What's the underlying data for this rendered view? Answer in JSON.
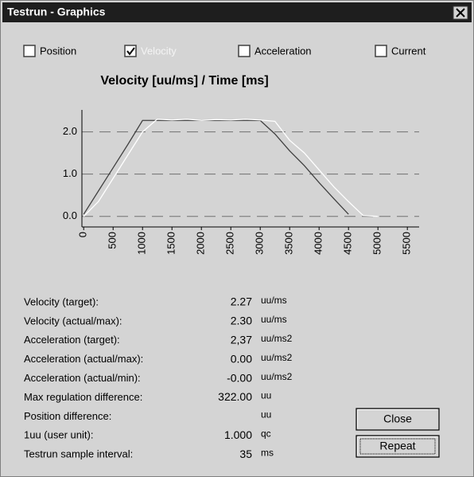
{
  "window": {
    "title": "Testrun - Graphics"
  },
  "checkboxes": [
    {
      "label": "Position",
      "checked": false
    },
    {
      "label": "Velocity",
      "checked": true
    },
    {
      "label": "Acceleration",
      "checked": false
    },
    {
      "label": "Current",
      "checked": false
    }
  ],
  "chart_data": {
    "type": "line",
    "title": "Velocity [uu/ms]  /  Time [ms]",
    "x": [
      0,
      250,
      500,
      750,
      1000,
      1250,
      1500,
      1750,
      2000,
      2250,
      2500,
      2750,
      3000,
      3250,
      3500,
      3750,
      4000,
      4250,
      4500,
      4750,
      5000
    ],
    "series": [
      {
        "color": "#404040",
        "values": [
          0.05,
          0.6,
          1.15,
          1.7,
          2.27,
          2.27,
          2.27,
          2.27,
          2.27,
          2.27,
          2.27,
          2.27,
          2.27,
          1.95,
          1.55,
          1.2,
          0.8,
          0.42,
          0.05,
          null,
          null
        ]
      },
      {
        "color": "#ffffff",
        "values": [
          0,
          0.35,
          0.9,
          1.45,
          2.0,
          2.3,
          2.28,
          2.3,
          2.27,
          2.29,
          2.28,
          2.3,
          2.28,
          2.25,
          1.8,
          1.5,
          1.1,
          0.7,
          0.35,
          0.02,
          0
        ]
      }
    ],
    "xlim": [
      -30,
      5700
    ],
    "ylim": [
      -0.25,
      2.52
    ],
    "xticks": [
      0,
      500,
      1000,
      1500,
      2000,
      2500,
      3000,
      3500,
      4000,
      4500,
      5000,
      5500
    ],
    "yticks": [
      {
        "value": 0,
        "label": "0.0"
      },
      {
        "value": 1,
        "label": "1.0"
      },
      {
        "value": 2,
        "label": "2.0"
      }
    ],
    "grid": true
  },
  "rows": [
    {
      "label": "Velocity (target):",
      "value": "2.27",
      "unit": "uu/ms"
    },
    {
      "label": "Velocity (actual/max):",
      "value": "2.30",
      "unit": "uu/ms"
    },
    {
      "label": "Acceleration (target):",
      "value": "2,37",
      "unit": "uu/ms2"
    },
    {
      "label": "Acceleration (actual/max):",
      "value": "0.00",
      "unit": "uu/ms2"
    },
    {
      "label": "Acceleration (actual/min):",
      "value": "-0.00",
      "unit": "uu/ms2"
    },
    {
      "label": "Max regulation difference:",
      "value": "322.00",
      "unit": "uu"
    },
    {
      "label": "Position difference:",
      "unit": "uu"
    },
    {
      "label": "1uu (user unit):",
      "value": "1.000",
      "unit": "qc"
    },
    {
      "label": "Testrun sample interval:",
      "value": "35",
      "unit": "ms"
    }
  ],
  "buttons": [
    {
      "label": "Close"
    },
    {
      "label": "Repeat"
    }
  ]
}
